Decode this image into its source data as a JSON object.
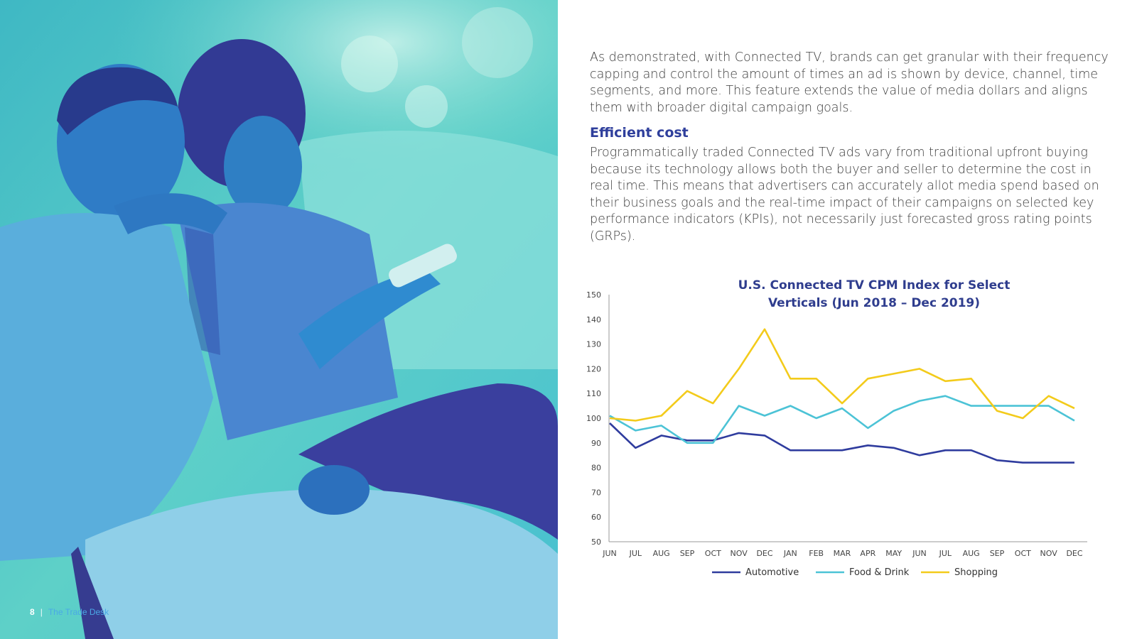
{
  "footer": {
    "page_number": "8",
    "separator": "|",
    "brand": "The Trade Desk"
  },
  "intro_paragraph": "As demonstrated, with Connected TV, brands can get granular with their frequency capping and control the amount of times an ad is shown by device, channel, time segments, and more. This feature extends the value of media dollars and aligns them with broader digital campaign goals.",
  "section": {
    "heading": "Efficient cost",
    "body": "Programmatically traded Connected TV ads vary from traditional upfront buying because its technology allows both the buyer and seller to determine the cost in real time. This means that advertisers can accurately allot media spend based on their business goals and the real-time impact of their campaigns on selected key performance indicators (KPIs), not necessarily just forecasted gross rating points (GRPs)."
  },
  "chart_data": {
    "type": "line",
    "title": "U.S. Connected TV CPM Index for Select Verticals (Jun 2018 – Dec 2019)",
    "title_lines": [
      "U.S. Connected TV CPM Index for Select",
      "Verticals (Jun 2018 – Dec 2019)"
    ],
    "categories": [
      "JUN",
      "JUL",
      "AUG",
      "SEP",
      "OCT",
      "NOV",
      "DEC",
      "JAN",
      "FEB",
      "MAR",
      "APR",
      "MAY",
      "JUN",
      "JUL",
      "AUG",
      "SEP",
      "OCT",
      "NOV",
      "DEC"
    ],
    "ylim": [
      50,
      150
    ],
    "yticks": [
      50,
      60,
      70,
      80,
      90,
      100,
      110,
      120,
      130,
      140,
      150
    ],
    "grid": false,
    "legend_position": "bottom",
    "series": [
      {
        "name": "Automotive",
        "color": "#2f3c9e",
        "values": [
          98,
          88,
          93,
          91,
          91,
          94,
          93,
          87,
          87,
          87,
          89,
          88,
          85,
          87,
          87,
          83,
          82,
          82,
          82
        ]
      },
      {
        "name": "Food & Drink",
        "color": "#4cc3d6",
        "values": [
          101,
          95,
          97,
          90,
          90,
          105,
          101,
          105,
          100,
          104,
          96,
          103,
          107,
          109,
          105,
          105,
          105,
          105,
          99
        ]
      },
      {
        "name": "Shopping",
        "color": "#f3cb1b",
        "values": [
          100,
          99,
          101,
          111,
          106,
          120,
          136,
          116,
          116,
          106,
          116,
          118,
          120,
          115,
          116,
          103,
          100,
          109,
          104
        ]
      }
    ]
  }
}
